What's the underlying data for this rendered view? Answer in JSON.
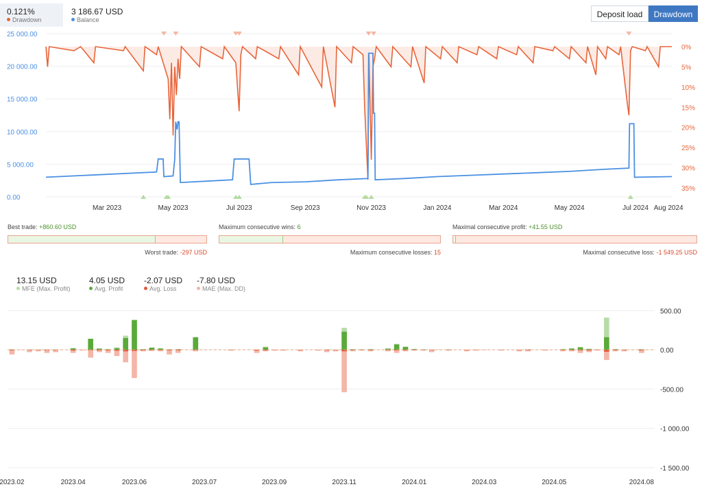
{
  "header": {
    "drawdown_value": "0.121%",
    "drawdown_label": "Drawdown",
    "balance_value": "3 186.67 USD",
    "balance_label": "Balance",
    "btn_deposit_load": "Deposit load",
    "btn_drawdown": "Drawdown"
  },
  "colors": {
    "drawdown": "#e8643a",
    "balance": "#4a90e2",
    "mfe": "#b8dca8",
    "profit": "#5aaa3a",
    "loss": "#e0583a",
    "mae": "#f4b6a8"
  },
  "stats": {
    "best_trade_label": "Best trade:",
    "best_trade_value": "+860.60 USD",
    "worst_trade_label": "Worst trade:",
    "worst_trade_value": "-297 USD",
    "max_cons_wins_label": "Maximum consecutive wins:",
    "max_cons_wins_value": "6",
    "max_cons_losses_label": "Maximum consecutive losses:",
    "max_cons_losses_value": "15",
    "max_cons_profit_label": "Maximal consecutive profit:",
    "max_cons_profit_value": "+41.55 USD",
    "max_cons_loss_label": "Maximal consecutive loss:",
    "max_cons_loss_value": "-1 549.25 USD",
    "bar1_ratio": 0.744,
    "bar2_ratio": 0.29,
    "bar3_ratio": 0.011
  },
  "summary": {
    "mfe_value": "13.15 USD",
    "mfe_label": "MFE (Max. Profit)",
    "avg_profit_value": "4.05 USD",
    "avg_profit_label": "Avg. Profit",
    "avg_loss_value": "-2.07 USD",
    "avg_loss_label": "Avg. Loss",
    "mae_value": "-7.80 USD",
    "mae_label": "MAE (Max. DD)"
  },
  "chart_data": [
    {
      "type": "line",
      "x_ticks": [
        "Mar 2023",
        "May 2023",
        "Jul 2023",
        "Sep 2023",
        "Nov 2023",
        "Jan 2024",
        "Mar 2024",
        "May 2024",
        "Jul 2024",
        "Aug 2024"
      ],
      "x_tick_month_index": [
        2,
        4,
        6,
        8,
        10,
        12,
        14,
        16,
        18,
        19
      ],
      "x_range_months": [
        0.15,
        19.1
      ],
      "ylim": [
        0,
        25000
      ],
      "y_ticks": [
        "0.00",
        "5 000.00",
        "10 000.00",
        "15 000.00",
        "20 000.00",
        "25 000.00"
      ],
      "y_tick_values": [
        0,
        5000,
        10000,
        15000,
        20000,
        25000
      ],
      "y2lim": [
        0,
        35
      ],
      "y2_ticks": [
        "0%",
        "5%",
        "10%",
        "15%",
        "20%",
        "25%",
        "30%",
        "35%"
      ],
      "y2_tick_values": [
        0,
        5,
        10,
        15,
        20,
        25,
        30,
        35
      ],
      "series": [
        {
          "name": "Balance",
          "points": [
            [
              0.15,
              3000
            ],
            [
              3.5,
              3800
            ],
            [
              3.55,
              5800
            ],
            [
              3.7,
              5800
            ],
            [
              3.72,
              3100
            ],
            [
              4.0,
              3200
            ],
            [
              4.05,
              5800
            ],
            [
              4.08,
              11500
            ],
            [
              4.12,
              10300
            ],
            [
              4.15,
              11500
            ],
            [
              4.18,
              11500
            ],
            [
              4.22,
              2200
            ],
            [
              5.0,
              2400
            ],
            [
              5.8,
              2600
            ],
            [
              5.85,
              5800
            ],
            [
              6.3,
              5800
            ],
            [
              6.35,
              1900
            ],
            [
              7.0,
              2200
            ],
            [
              8.0,
              2300
            ],
            [
              9.0,
              2600
            ],
            [
              9.9,
              2800
            ],
            [
              9.92,
              22000
            ],
            [
              10.05,
              22000
            ],
            [
              10.07,
              12800
            ],
            [
              10.1,
              12800
            ],
            [
              10.12,
              2600
            ],
            [
              11.0,
              2800
            ],
            [
              12.0,
              3100
            ],
            [
              13.0,
              3300
            ],
            [
              14.0,
              3500
            ],
            [
              15.0,
              3700
            ],
            [
              16.0,
              3900
            ],
            [
              17.0,
              4200
            ],
            [
              17.8,
              4400
            ],
            [
              17.82,
              11200
            ],
            [
              17.95,
              11200
            ],
            [
              17.97,
              3000
            ],
            [
              19.1,
              3100
            ]
          ]
        },
        {
          "name": "Drawdown",
          "points": [
            [
              0.15,
              0
            ],
            [
              0.2,
              5
            ],
            [
              0.25,
              0
            ],
            [
              1.0,
              1
            ],
            [
              1.2,
              0
            ],
            [
              1.6,
              4
            ],
            [
              1.65,
              0
            ],
            [
              2.5,
              1
            ],
            [
              2.55,
              0
            ],
            [
              3.1,
              6
            ],
            [
              3.15,
              0
            ],
            [
              3.5,
              2
            ],
            [
              3.55,
              0
            ],
            [
              3.85,
              8
            ],
            [
              3.9,
              18
            ],
            [
              3.95,
              4
            ],
            [
              4.0,
              22
            ],
            [
              4.05,
              5
            ],
            [
              4.1,
              12
            ],
            [
              4.15,
              3
            ],
            [
              4.2,
              8
            ],
            [
              4.25,
              0
            ],
            [
              4.8,
              5
            ],
            [
              4.85,
              0
            ],
            [
              5.5,
              3
            ],
            [
              5.55,
              0
            ],
            [
              5.9,
              4
            ],
            [
              6.0,
              16
            ],
            [
              6.05,
              2
            ],
            [
              6.1,
              0
            ],
            [
              6.5,
              3
            ],
            [
              6.55,
              0
            ],
            [
              7.2,
              3
            ],
            [
              7.25,
              0
            ],
            [
              7.8,
              7
            ],
            [
              7.85,
              0
            ],
            [
              8.5,
              10
            ],
            [
              8.55,
              0
            ],
            [
              8.9,
              15
            ],
            [
              8.95,
              0
            ],
            [
              9.4,
              4
            ],
            [
              9.45,
              0
            ],
            [
              9.75,
              2
            ],
            [
              9.8,
              15
            ],
            [
              9.9,
              33
            ],
            [
              9.93,
              2
            ],
            [
              10.0,
              28
            ],
            [
              10.05,
              5
            ],
            [
              10.1,
              3
            ],
            [
              10.15,
              0
            ],
            [
              10.6,
              5
            ],
            [
              10.65,
              0
            ],
            [
              11.2,
              5
            ],
            [
              11.25,
              0
            ],
            [
              11.6,
              9
            ],
            [
              11.65,
              0
            ],
            [
              12.1,
              3
            ],
            [
              12.15,
              0
            ],
            [
              12.6,
              4
            ],
            [
              12.65,
              0
            ],
            [
              13.2,
              2
            ],
            [
              13.25,
              0
            ],
            [
              13.8,
              3
            ],
            [
              13.85,
              0
            ],
            [
              14.4,
              2
            ],
            [
              14.45,
              0
            ],
            [
              14.9,
              4
            ],
            [
              14.95,
              0
            ],
            [
              15.5,
              1
            ],
            [
              15.55,
              0
            ],
            [
              16.0,
              3
            ],
            [
              16.05,
              0
            ],
            [
              16.5,
              4
            ],
            [
              16.55,
              0
            ],
            [
              16.8,
              7
            ],
            [
              16.85,
              0
            ],
            [
              17.1,
              3
            ],
            [
              17.15,
              0
            ],
            [
              17.5,
              2
            ],
            [
              17.55,
              0
            ],
            [
              17.75,
              14
            ],
            [
              17.8,
              17
            ],
            [
              17.85,
              1
            ],
            [
              17.9,
              0
            ],
            [
              18.3,
              1
            ],
            [
              18.35,
              0
            ],
            [
              18.7,
              5
            ],
            [
              18.75,
              0
            ],
            [
              19.1,
              0
            ]
          ]
        }
      ],
      "markers_top": [
        3.72,
        4.08,
        5.9,
        6.0,
        9.92,
        10.07,
        17.8
      ],
      "markers_bottom": [
        3.1,
        3.8,
        3.85,
        5.9,
        6.0,
        9.8,
        9.85,
        10.0,
        17.85
      ]
    },
    {
      "type": "bar",
      "x_ticks": [
        "2023.02",
        "2023.04",
        "2023.06",
        "2023.07",
        "2023.09",
        "2023.11",
        "2024.01",
        "2024.03",
        "2024.05",
        "2024.08"
      ],
      "x_tick_index": [
        0,
        7,
        14,
        22,
        30,
        38,
        46,
        54,
        62,
        72
      ],
      "ylim": [
        -1550,
        520
      ],
      "y_ticks": [
        "500.00",
        "0.00",
        "-500.00",
        "-1 000.00",
        "-1 500.00"
      ],
      "y_tick_values": [
        500,
        0,
        -500,
        -1000,
        -1500
      ],
      "series": [
        {
          "name": "MFE (Max. Profit)",
          "values": [
            5,
            0,
            4,
            4,
            5,
            4,
            0,
            22,
            0,
            6,
            18,
            10,
            30,
            180,
            320,
            8,
            30,
            20,
            6,
            8,
            0,
            110,
            0,
            0,
            0,
            2,
            0,
            0,
            3,
            40,
            0,
            0,
            0,
            2,
            0,
            0,
            4,
            2,
            280,
            8,
            6,
            8,
            0,
            20,
            75,
            42,
            10,
            6,
            4,
            4,
            6,
            0,
            0,
            2,
            0,
            0,
            0,
            0,
            0,
            6,
            0,
            0,
            0,
            10,
            20,
            36,
            12,
            4,
            410,
            10,
            4,
            2,
            8,
            0
          ]
        },
        {
          "name": "Avg. Profit",
          "values": [
            3,
            0,
            2,
            2,
            3,
            2,
            0,
            18,
            0,
            140,
            14,
            5,
            20,
            150,
            380,
            6,
            26,
            15,
            3,
            6,
            0,
            160,
            0,
            0,
            0,
            0,
            0,
            0,
            0,
            30,
            0,
            0,
            0,
            0,
            0,
            0,
            3,
            0,
            230,
            6,
            4,
            6,
            0,
            12,
            68,
            35,
            8,
            4,
            2,
            2,
            3,
            0,
            0,
            0,
            0,
            0,
            0,
            0,
            0,
            4,
            0,
            0,
            0,
            6,
            15,
            30,
            10,
            2,
            160,
            6,
            2,
            0,
            5,
            0
          ]
        },
        {
          "name": "Avg. Loss",
          "values": [
            -8,
            0,
            -5,
            -4,
            -6,
            -5,
            0,
            -10,
            0,
            -6,
            -8,
            -8,
            -12,
            -20,
            -15,
            -8,
            -6,
            -5,
            -8,
            -8,
            0,
            -5,
            0,
            0,
            0,
            -5,
            0,
            0,
            -10,
            -8,
            -5,
            -5,
            0,
            -5,
            0,
            -4,
            -6,
            -5,
            -20,
            -5,
            -4,
            -6,
            0,
            -5,
            -8,
            -6,
            -4,
            -4,
            -5,
            0,
            -4,
            0,
            -5,
            -4,
            -2,
            0,
            -3,
            0,
            -5,
            -6,
            0,
            -4,
            0,
            -5,
            -6,
            -8,
            -10,
            -4,
            -25,
            -6,
            -6,
            0,
            -8,
            0
          ]
        },
        {
          "name": "MAE (Max. DD)",
          "values": [
            -60,
            -5,
            -30,
            -20,
            -40,
            -30,
            0,
            -40,
            -10,
            -100,
            -30,
            -40,
            -80,
            -160,
            -360,
            -20,
            -15,
            -20,
            -60,
            -40,
            0,
            -20,
            0,
            0,
            0,
            -10,
            0,
            0,
            -40,
            -20,
            -10,
            -10,
            0,
            -20,
            0,
            -10,
            -30,
            -20,
            -540,
            -20,
            -10,
            -20,
            0,
            -20,
            -40,
            -20,
            -10,
            -10,
            -30,
            0,
            -10,
            0,
            -20,
            -10,
            -5,
            0,
            -10,
            0,
            -20,
            -20,
            0,
            -10,
            0,
            -20,
            -20,
            -40,
            -30,
            -10,
            -130,
            -20,
            -20,
            0,
            -40,
            0
          ]
        }
      ]
    }
  ]
}
